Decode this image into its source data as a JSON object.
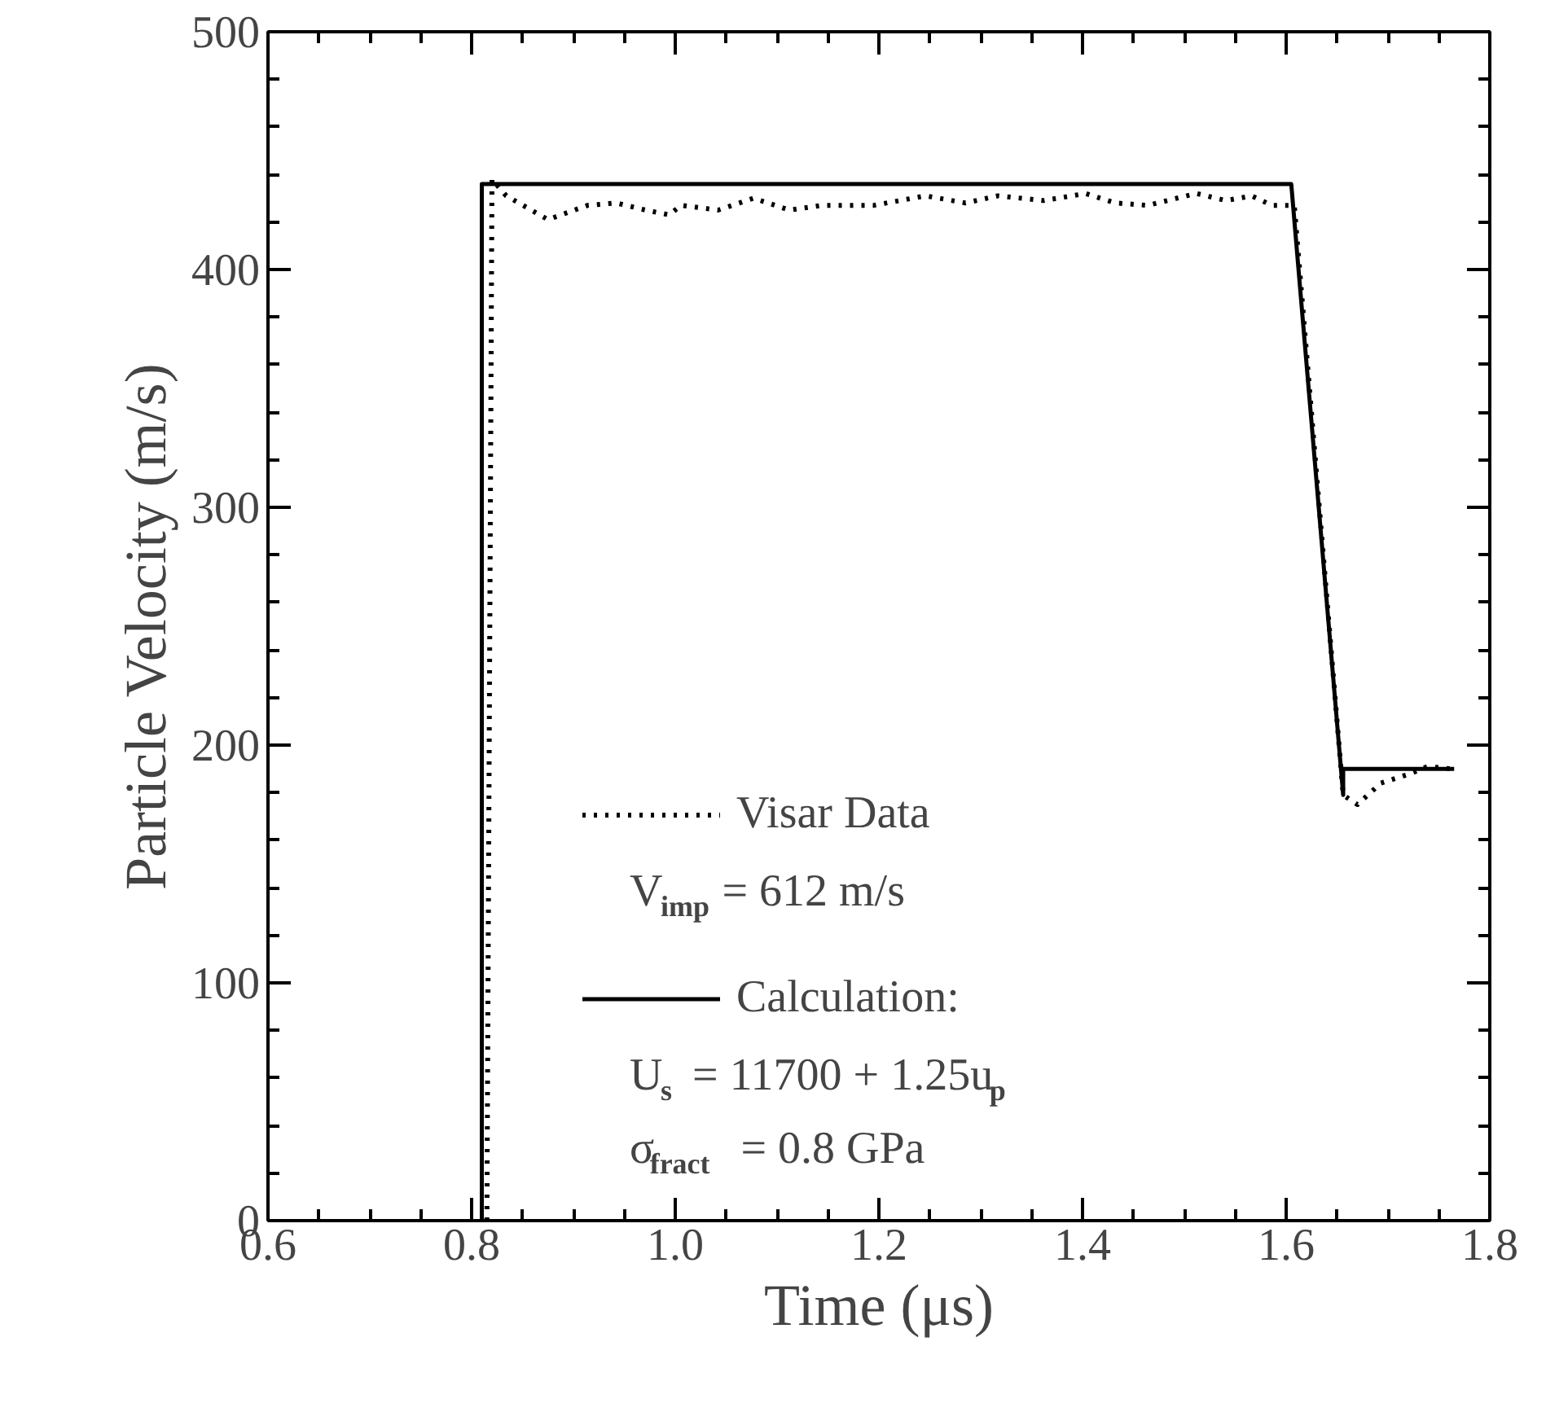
{
  "chart_data": {
    "type": "line",
    "xlabel": "Time (μs)",
    "ylabel": "Particle Velocity (m/s)",
    "xlim": [
      0.6,
      1.8
    ],
    "ylim": [
      0,
      500
    ],
    "xticks": [
      {
        "value": 0.6,
        "label": "0.6"
      },
      {
        "value": 0.8,
        "label": "0.8"
      },
      {
        "value": 1.0,
        "label": "1.0"
      },
      {
        "value": 1.2,
        "label": "1.2"
      },
      {
        "value": 1.4,
        "label": "1.4"
      },
      {
        "value": 1.6,
        "label": "1.6"
      },
      {
        "value": 1.8,
        "label": "1.8"
      }
    ],
    "yticks": [
      0,
      100,
      200,
      300,
      400,
      500
    ],
    "grid": false,
    "legend": "bottom",
    "series": [
      {
        "name": "Visar Data",
        "color": "#000000",
        "line_style": "dotted",
        "x": [
          0.815,
          0.82,
          0.834,
          0.875,
          0.914,
          0.942,
          0.971,
          0.994,
          1.006,
          1.042,
          1.077,
          1.112,
          1.144,
          1.195,
          1.246,
          1.285,
          1.317,
          1.362,
          1.403,
          1.432,
          1.464,
          1.512,
          1.541,
          1.566,
          1.586,
          1.608,
          1.656,
          1.67,
          1.693,
          1.722,
          1.739,
          1.762
        ],
        "values": [
          0,
          438,
          431,
          421,
          427,
          428,
          425,
          423,
          427,
          425,
          430,
          425,
          427,
          427,
          431,
          428,
          431,
          429,
          432,
          428,
          427,
          432,
          429,
          431,
          427,
          427,
          179,
          175,
          184,
          188,
          191,
          190
        ]
      },
      {
        "name": "Calculation:",
        "color": "#000000",
        "line_style": "solid",
        "x": [
          0.81,
          0.81,
          1.605,
          1.656,
          1.656,
          1.66,
          1.765
        ],
        "values": [
          0,
          436,
          436,
          179,
          190,
          190,
          190
        ]
      }
    ],
    "annotations": [
      "V$_{imp}$ = 612 m/s",
      "U$_{s}$ = 11700 + 1.25u$_{p}$",
      "σ$_{fract}$ = 0.8 GPa"
    ]
  }
}
